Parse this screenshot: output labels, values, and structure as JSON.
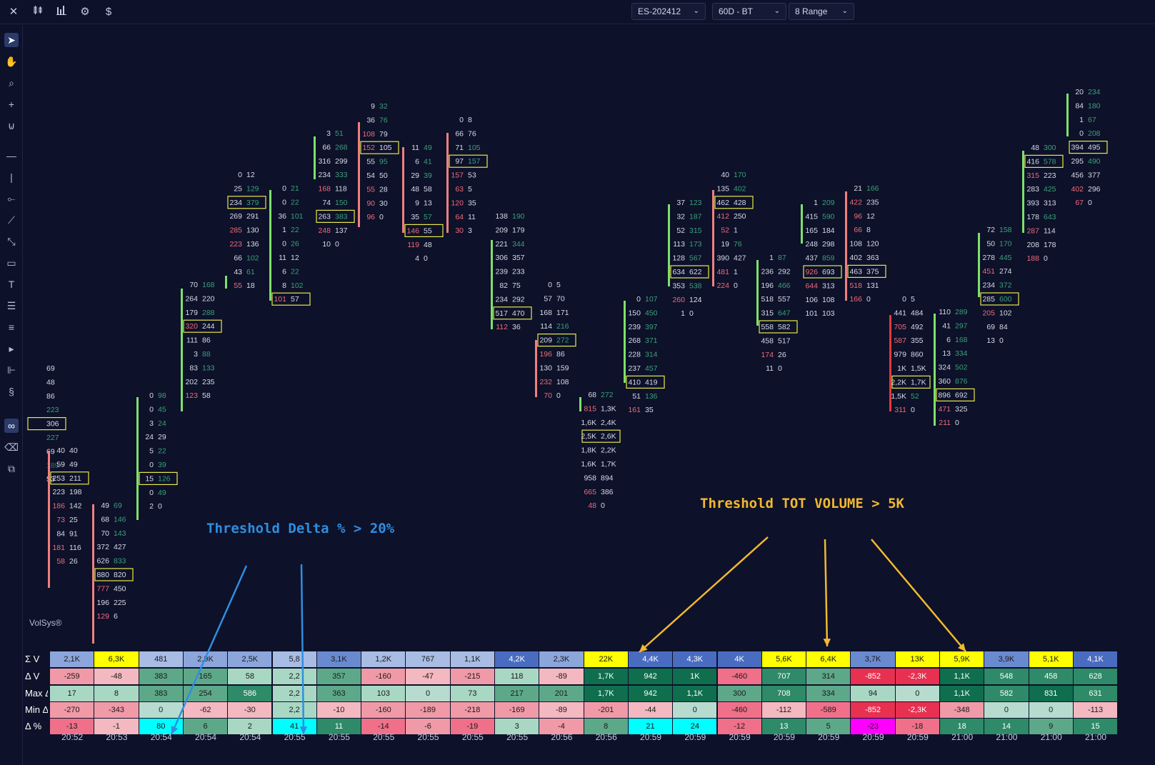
{
  "toolbar": {
    "icons": [
      "close-icon",
      "candles-icon",
      "bars-icon",
      "settings-icon",
      "dollar-icon"
    ],
    "symbol": "ES-202412",
    "timeframe": "60D - BT",
    "range": "8 Range"
  },
  "watermark": "VolSys®",
  "annotations": {
    "delta": "Threshold Delta % > 20%",
    "volume": "Threshold TOT VOLUME > 5K"
  },
  "colors": {
    "background": "#0d1129",
    "bid_red": "#ef5a6a",
    "ask_green": "#3aa07a",
    "highlight_box": "#e8e84a",
    "candle_up": "#7ee06a",
    "candle_down": "#f08080",
    "annotation_blue": "#2f8ee0",
    "annotation_yellow": "#f2b830"
  },
  "footprint": [
    {
      "rows": [
        [
          "",
          "69"
        ],
        [
          "",
          "48"
        ],
        [
          "",
          "86"
        ],
        [
          "",
          "223"
        ],
        [
          "",
          "306"
        ],
        [
          "",
          "227"
        ],
        [
          "",
          "69"
        ],
        [
          "",
          "189"
        ],
        [
          "",
          "53"
        ]
      ]
    },
    {
      "rows": [
        [
          "40",
          "40"
        ],
        [
          "59",
          "49"
        ],
        [
          "253",
          "211"
        ],
        [
          "223",
          "198"
        ],
        [
          "186",
          "142"
        ],
        [
          "73",
          "25"
        ],
        [
          "84",
          "91"
        ],
        [
          "181",
          "116"
        ],
        [
          "58",
          "26"
        ]
      ]
    },
    {
      "rows": [
        [
          "49",
          "69"
        ],
        [
          "68",
          "146"
        ],
        [
          "70",
          "143"
        ],
        [
          "372",
          "427"
        ],
        [
          "626",
          "833"
        ],
        [
          "880",
          "820"
        ],
        [
          "777",
          "450"
        ],
        [
          "196",
          "225"
        ],
        [
          "129",
          "6"
        ]
      ]
    },
    {
      "rows": [
        [
          "0",
          "98"
        ],
        [
          "0",
          "45"
        ],
        [
          "3",
          "24"
        ],
        [
          "24",
          "29"
        ],
        [
          "5",
          "22"
        ],
        [
          "0",
          "39"
        ],
        [
          "15",
          "126"
        ],
        [
          "0",
          "49"
        ],
        [
          "2",
          "0"
        ]
      ]
    },
    {
      "rows": [
        [
          "70",
          "168"
        ],
        [
          "264",
          "220"
        ],
        [
          "179",
          "288"
        ],
        [
          "320",
          "244"
        ],
        [
          "111",
          "86"
        ],
        [
          "3",
          "88"
        ],
        [
          "83",
          "133"
        ],
        [
          "202",
          "235"
        ],
        [
          "123",
          "58"
        ]
      ]
    },
    {
      "rows": [
        [
          "0",
          "12"
        ],
        [
          "25",
          "129"
        ],
        [
          "234",
          "379"
        ],
        [
          "269",
          "291"
        ],
        [
          "285",
          "130"
        ],
        [
          "223",
          "136"
        ],
        [
          "66",
          "102"
        ],
        [
          "43",
          "61"
        ],
        [
          "55",
          "18"
        ]
      ]
    },
    {
      "rows": [
        [
          "0",
          "21"
        ],
        [
          "0",
          "22"
        ],
        [
          "36",
          "101"
        ],
        [
          "1",
          "22"
        ],
        [
          "0",
          "26"
        ],
        [
          "11",
          "12"
        ],
        [
          "6",
          "22"
        ],
        [
          "8",
          "102"
        ],
        [
          "101",
          "57"
        ]
      ]
    },
    {
      "rows": [
        [
          "3",
          "51"
        ],
        [
          "66",
          "268"
        ],
        [
          "316",
          "299"
        ],
        [
          "234",
          "333"
        ],
        [
          "168",
          "118"
        ],
        [
          "74",
          "150"
        ],
        [
          "263",
          "383"
        ],
        [
          "248",
          "137"
        ],
        [
          "10",
          "0"
        ]
      ]
    },
    {
      "rows": [
        [
          "9",
          "32"
        ],
        [
          "36",
          "76"
        ],
        [
          "108",
          "79"
        ],
        [
          "152",
          "105"
        ],
        [
          "55",
          "95"
        ],
        [
          "54",
          "50"
        ],
        [
          "55",
          "28"
        ],
        [
          "90",
          "30"
        ],
        [
          "96",
          "0"
        ]
      ]
    },
    {
      "rows": [
        [
          "11",
          "49"
        ],
        [
          "6",
          "41"
        ],
        [
          "29",
          "39"
        ],
        [
          "48",
          "58"
        ],
        [
          "9",
          "13"
        ],
        [
          "35",
          "57"
        ],
        [
          "146",
          "55"
        ],
        [
          "119",
          "48"
        ],
        [
          "4",
          "0"
        ]
      ]
    },
    {
      "rows": [
        [
          "0",
          "8"
        ],
        [
          "66",
          "76"
        ],
        [
          "71",
          "105"
        ],
        [
          "97",
          "157"
        ],
        [
          "157",
          "53"
        ],
        [
          "63",
          "5"
        ],
        [
          "120",
          "35"
        ],
        [
          "64",
          "11"
        ],
        [
          "30",
          "3"
        ]
      ]
    },
    {
      "rows": [
        [
          "138",
          "190"
        ],
        [
          "209",
          "179"
        ],
        [
          "221",
          "344"
        ],
        [
          "306",
          "357"
        ],
        [
          "239",
          "233"
        ],
        [
          "82",
          "75"
        ],
        [
          "234",
          "292"
        ],
        [
          "517",
          "470"
        ],
        [
          "112",
          "36"
        ]
      ]
    },
    {
      "rows": [
        [
          "0",
          "5"
        ],
        [
          "57",
          "70"
        ],
        [
          "168",
          "171"
        ],
        [
          "114",
          "216"
        ],
        [
          "209",
          "272"
        ],
        [
          "196",
          "86"
        ],
        [
          "130",
          "159"
        ],
        [
          "232",
          "108"
        ],
        [
          "70",
          "0"
        ]
      ]
    },
    {
      "rows": [
        [
          "68",
          "272"
        ],
        [
          "815",
          "1,3K"
        ],
        [
          "1,6K",
          "2,4K"
        ],
        [
          "2,5K",
          "2,6K"
        ],
        [
          "1,8K",
          "2,2K"
        ],
        [
          "1,6K",
          "1,7K"
        ],
        [
          "958",
          "894"
        ],
        [
          "665",
          "386"
        ],
        [
          "48",
          "0"
        ]
      ]
    },
    {
      "rows": [
        [
          "0",
          "107"
        ],
        [
          "150",
          "450"
        ],
        [
          "239",
          "397"
        ],
        [
          "268",
          "371"
        ],
        [
          "228",
          "314"
        ],
        [
          "237",
          "457"
        ],
        [
          "410",
          "419"
        ],
        [
          "51",
          "136"
        ],
        [
          "161",
          "35"
        ]
      ]
    },
    {
      "rows": [
        [
          "37",
          "123"
        ],
        [
          "32",
          "187"
        ],
        [
          "52",
          "315"
        ],
        [
          "113",
          "173"
        ],
        [
          "128",
          "567"
        ],
        [
          "634",
          "622"
        ],
        [
          "353",
          "538"
        ],
        [
          "260",
          "124"
        ],
        [
          "1",
          "0"
        ]
      ]
    },
    {
      "rows": [
        [
          "40",
          "170"
        ],
        [
          "135",
          "402"
        ],
        [
          "462",
          "428"
        ],
        [
          "412",
          "250"
        ],
        [
          "52",
          "1"
        ],
        [
          "19",
          "76"
        ],
        [
          "390",
          "427"
        ],
        [
          "481",
          "1"
        ],
        [
          "224",
          "0"
        ]
      ]
    },
    {
      "rows": [
        [
          "1",
          "87"
        ],
        [
          "236",
          "292"
        ],
        [
          "196",
          "466"
        ],
        [
          "518",
          "557"
        ],
        [
          "315",
          "647"
        ],
        [
          "558",
          "582"
        ],
        [
          "458",
          "517"
        ],
        [
          "174",
          "26"
        ],
        [
          "11",
          "0"
        ]
      ]
    },
    {
      "rows": [
        [
          "1",
          "209"
        ],
        [
          "415",
          "590"
        ],
        [
          "165",
          "184"
        ],
        [
          "248",
          "298"
        ],
        [
          "437",
          "859"
        ],
        [
          "926",
          "693"
        ],
        [
          "644",
          "313"
        ],
        [
          "106",
          "108"
        ],
        [
          "101",
          "103"
        ]
      ]
    },
    {
      "rows": [
        [
          "21",
          "166"
        ],
        [
          "422",
          "235"
        ],
        [
          "96",
          "12"
        ],
        [
          "66",
          "8"
        ],
        [
          "108",
          "120"
        ],
        [
          "402",
          "363"
        ],
        [
          "463",
          "375"
        ],
        [
          "518",
          "131"
        ],
        [
          "166",
          "0"
        ]
      ]
    },
    {
      "rows": [
        [
          "0",
          "5"
        ],
        [
          "441",
          "484"
        ],
        [
          "705",
          "492"
        ],
        [
          "587",
          "355"
        ],
        [
          "979",
          "860"
        ],
        [
          "1K",
          "1,5K"
        ],
        [
          "2,2K",
          "1,7K"
        ],
        [
          "1,5K",
          "52"
        ],
        [
          "311",
          "0"
        ]
      ]
    },
    {
      "rows": [
        [
          "110",
          "289"
        ],
        [
          "41",
          "297"
        ],
        [
          "6",
          "168"
        ],
        [
          "13",
          "334"
        ],
        [
          "324",
          "502"
        ],
        [
          "360",
          "876"
        ],
        [
          "896",
          "692"
        ],
        [
          "471",
          "325"
        ],
        [
          "211",
          "0"
        ]
      ]
    },
    {
      "rows": [
        [
          "72",
          "158"
        ],
        [
          "50",
          "170"
        ],
        [
          "278",
          "445"
        ],
        [
          "451",
          "274"
        ],
        [
          "234",
          "372"
        ],
        [
          "285",
          "600"
        ],
        [
          "205",
          "102"
        ],
        [
          "69",
          "84"
        ],
        [
          "13",
          "0"
        ]
      ]
    },
    {
      "rows": [
        [
          "48",
          "300"
        ],
        [
          "416",
          "578"
        ],
        [
          "315",
          "223"
        ],
        [
          "283",
          "425"
        ],
        [
          "393",
          "313"
        ],
        [
          "178",
          "643"
        ],
        [
          "287",
          "114"
        ],
        [
          "208",
          "178"
        ],
        [
          "188",
          "0"
        ]
      ]
    },
    {
      "rows": [
        [
          "20",
          "234"
        ],
        [
          "84",
          "180"
        ],
        [
          "1",
          "67"
        ],
        [
          "0",
          "208"
        ],
        [
          "394",
          "495"
        ],
        [
          "295",
          "490"
        ],
        [
          "456",
          "377"
        ],
        [
          "402",
          "296"
        ],
        [
          "67",
          "0"
        ]
      ]
    }
  ],
  "table": {
    "row_labels": [
      "Σ V",
      "Δ V",
      "Max Δ V",
      "Min Δ V",
      "Δ %"
    ],
    "sum_v": [
      "2,1K",
      "6,3K",
      "481",
      "2,9K",
      "2,5K",
      "5,8",
      "3,1K",
      "1,2K",
      "767",
      "1,1K",
      "4,2K",
      "2,3K",
      "22K",
      "4,4K",
      "4,3K",
      "4K",
      "5,6K",
      "6,4K",
      "3,7K",
      "13K",
      "5,9K",
      "3,9K",
      "5,1K",
      "4,1K"
    ],
    "delta_v": [
      "-259",
      "-48",
      "383",
      "165",
      "58",
      "2,2",
      "357",
      "-160",
      "-47",
      "-215",
      "118",
      "-89",
      "1,7K",
      "942",
      "1K",
      "-460",
      "707",
      "314",
      "-852",
      "-2,3K",
      "1,1K",
      "548",
      "458",
      "628"
    ],
    "max_delta_v": [
      "17",
      "8",
      "383",
      "254",
      "586",
      "2,2",
      "363",
      "103",
      "0",
      "73",
      "217",
      "201",
      "1,7K",
      "942",
      "1,1K",
      "300",
      "708",
      "334",
      "94",
      "0",
      "1,1K",
      "582",
      "831",
      "631"
    ],
    "min_delta_v": [
      "-270",
      "-343",
      "0",
      "-62",
      "-30",
      "2,2",
      "-10",
      "-160",
      "-189",
      "-218",
      "-169",
      "-89",
      "-201",
      "-44",
      "0",
      "-460",
      "-112",
      "-589",
      "-852",
      "-2,3K",
      "-348",
      "0",
      "0",
      "-113"
    ],
    "delta_pct": [
      "-13",
      "-1",
      "80",
      "6",
      "2",
      "41",
      "11",
      "-14",
      "-6",
      "-19",
      "3",
      "-4",
      "8",
      "21",
      "24",
      "-12",
      "13",
      "5",
      "-23",
      "-18",
      "18",
      "14",
      "9",
      "15"
    ],
    "times": [
      "20:52",
      "20:53",
      "20:54",
      "20:54",
      "20:54",
      "20:55",
      "20:55",
      "20:55",
      "20:55",
      "20:55",
      "20:55",
      "20:56",
      "20:56",
      "20:59",
      "20:59",
      "20:59",
      "20:59",
      "20:59",
      "20:59",
      "20:59",
      "21:00",
      "21:00",
      "21:00",
      "21:00"
    ]
  }
}
